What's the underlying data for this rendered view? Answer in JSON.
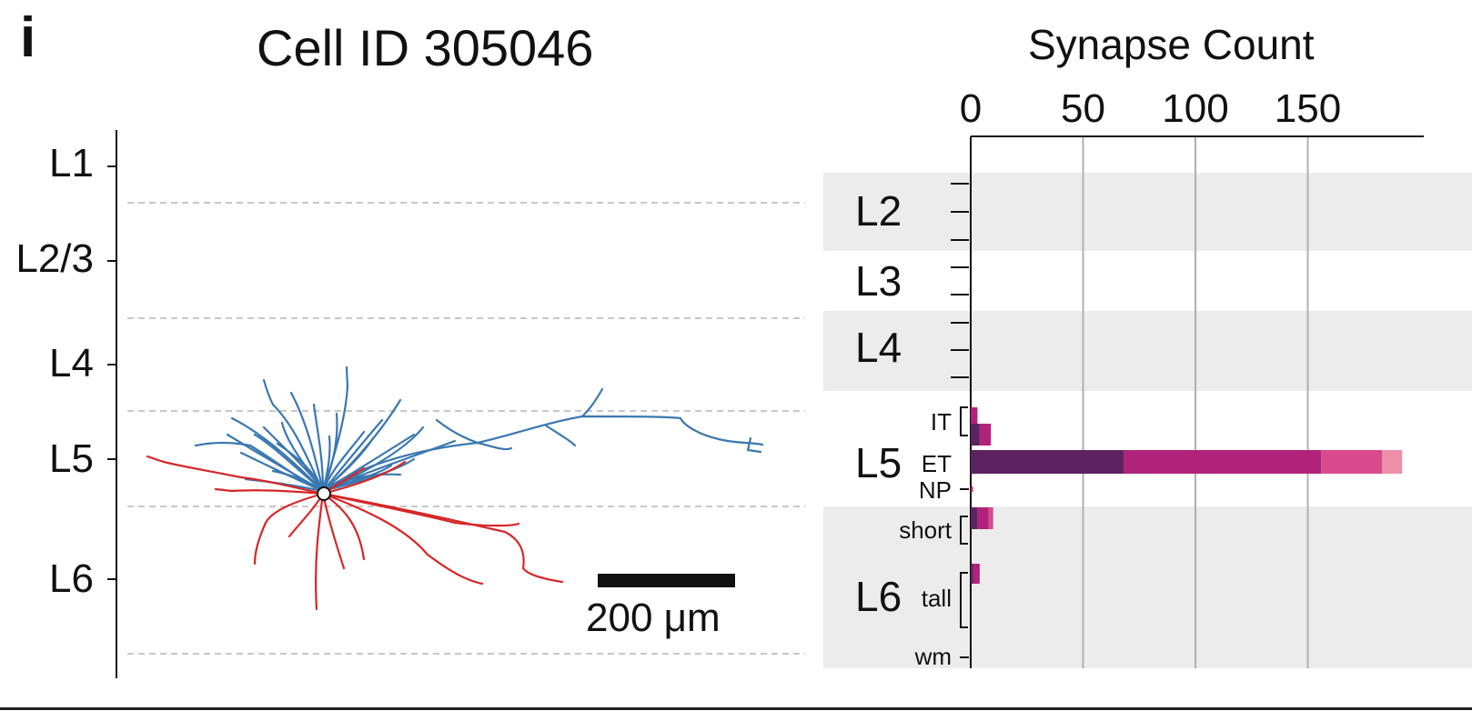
{
  "panel_letter": "i",
  "cell_title": "Cell ID 305046",
  "scale_bar": {
    "label": "200 μm",
    "length_um": 200
  },
  "cortical_layers": [
    "L1",
    "L2/3",
    "L4",
    "L5",
    "L6"
  ],
  "colors": {
    "axon": "#3a78b0",
    "dendrite": "#d62728",
    "layer_boundary": "#c8c8c8",
    "shading": "#ececec",
    "series": [
      "#5c2360",
      "#b0237a",
      "#d84a8c",
      "#ec8fa8"
    ]
  },
  "chart_data": {
    "type": "bar",
    "orientation": "horizontal",
    "stacked": true,
    "xlabel": "Synapse Count",
    "xticks": [
      0,
      50,
      100,
      150
    ],
    "xlim": [
      0,
      200
    ],
    "grid": true,
    "layer_groups": [
      "L2",
      "L3",
      "L4",
      "L5",
      "L6"
    ],
    "category_labels": [
      "IT",
      "ET",
      "NP",
      "short",
      "tall",
      "wm"
    ],
    "rows": [
      {
        "group": "L5",
        "label": "",
        "segments": [
          0,
          3,
          0,
          0
        ]
      },
      {
        "group": "L5",
        "label": "",
        "segments": [
          4,
          5,
          0,
          0
        ]
      },
      {
        "group": "L5",
        "label": "ET",
        "segments": [
          68,
          88,
          27,
          9
        ]
      },
      {
        "group": "L5",
        "label": "NP",
        "segments": [
          0,
          1,
          0,
          0
        ]
      },
      {
        "group": "L6",
        "label": "",
        "segments": [
          3,
          5,
          2,
          0
        ]
      },
      {
        "group": "L6",
        "label": "",
        "segments": [
          1,
          3,
          0,
          0
        ]
      }
    ]
  }
}
